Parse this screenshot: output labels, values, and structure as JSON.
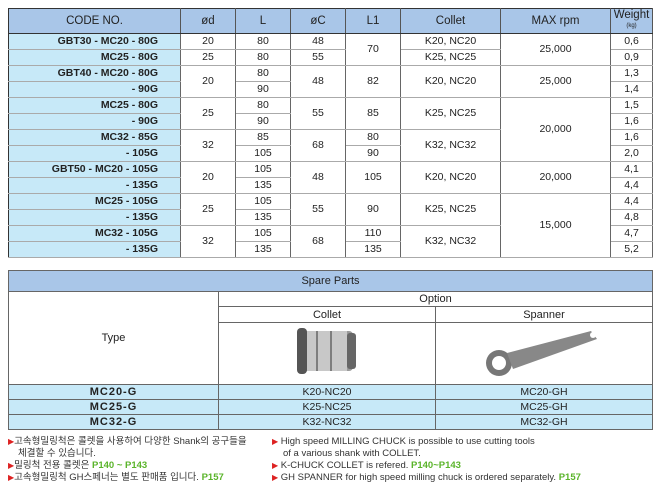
{
  "spec_table": {
    "headers": [
      "CODE NO.",
      "ød",
      "L",
      "øC",
      "L1",
      "Collet",
      "MAX rpm",
      "Weight"
    ],
    "weight_unit": "(kg)",
    "rows": [
      {
        "code": "GBT30 - MC20 -   80G",
        "d": "20",
        "L": "80",
        "C": "48",
        "L1": "70",
        "collet": "K20, NC20",
        "rpm": "25,000",
        "w": "0,6"
      },
      {
        "code": "MC25 -   80G",
        "d": "25",
        "L": "80",
        "C": "55",
        "L1": null,
        "collet": "K25, NC25",
        "rpm": null,
        "w": "0,9"
      },
      {
        "code": "GBT40 - MC20 -   80G",
        "d": "20",
        "L": "80",
        "C": "48",
        "L1": "82",
        "collet": "K20, NC20",
        "rpm": "25,000",
        "w": "1,3"
      },
      {
        "code": "-   90G",
        "d": null,
        "L": "90",
        "C": null,
        "L1": null,
        "collet": null,
        "rpm": null,
        "w": "1,4"
      },
      {
        "code": "MC25 -   80G",
        "d": "25",
        "L": "80",
        "C": "55",
        "L1": "85",
        "collet": "K25, NC25",
        "rpm": "20,000",
        "w": "1,5"
      },
      {
        "code": "-   90G",
        "d": null,
        "L": "90",
        "C": null,
        "L1": null,
        "collet": null,
        "rpm": null,
        "w": "1,6"
      },
      {
        "code": "MC32 -   85G",
        "d": "32",
        "L": "85",
        "C": "68",
        "L1": "80",
        "collet": "K32, NC32",
        "rpm": null,
        "w": "1,6"
      },
      {
        "code": "- 105G",
        "d": null,
        "L": "105",
        "C": null,
        "L1": "90",
        "collet": null,
        "rpm": null,
        "w": "2,0"
      },
      {
        "code": "GBT50 - MC20 - 105G",
        "d": "20",
        "L": "105",
        "C": "48",
        "L1": "105",
        "collet": "K20, NC20",
        "rpm": "20,000",
        "w": "4,1"
      },
      {
        "code": "- 135G",
        "d": null,
        "L": "135",
        "C": null,
        "L1": null,
        "collet": null,
        "rpm": null,
        "w": "4,4"
      },
      {
        "code": "MC25 - 105G",
        "d": "25",
        "L": "105",
        "C": "55",
        "L1": "90",
        "collet": "K25, NC25",
        "rpm": "15,000",
        "w": "4,4"
      },
      {
        "code": "- 135G",
        "d": null,
        "L": "135",
        "C": null,
        "L1": null,
        "collet": null,
        "rpm": null,
        "w": "4,8"
      },
      {
        "code": "MC32 - 105G",
        "d": "32",
        "L": "105",
        "C": "68",
        "L1": "110",
        "collet": "K32, NC32",
        "rpm": null,
        "w": "4,7"
      },
      {
        "code": "- 135G",
        "d": null,
        "L": "135",
        "C": null,
        "L1": "135",
        "collet": null,
        "rpm": null,
        "w": "5,2"
      }
    ]
  },
  "spare_parts": {
    "title": "Spare Parts",
    "option": "Option",
    "collet": "Collet",
    "spanner": "Spanner",
    "type": "Type",
    "rows": [
      [
        "MC20-G",
        "K20-NC20",
        "MC20-GH"
      ],
      [
        "MC25-G",
        "K25-NC25",
        "MC25-GH"
      ],
      [
        "MC32-G",
        "K32-NC32",
        "MC32-GH"
      ]
    ]
  },
  "notes_kr": {
    "l1": "고속형밀링척은 콜렛을 사용하여 다양한 Shank의 공구들을",
    "l1b": "체결할 수 있습니다.",
    "l2": "밀링척 전용 콜렛은 ",
    "l2p": "P140 ~ P143",
    "l3": "고속형밀링척 GH스페너는 별도 판매품 입니다.  ",
    "l3p": "P157"
  },
  "notes_en": {
    "l1": "High speed MILLING CHUCK is possible to use cutting tools",
    "l1b": "of a various shank with COLLET.",
    "l2": "K-CHUCK COLLET  is refered.   ",
    "l2p": "P140~P143",
    "l3": "GH SPANNER for high speed milling chuck is ordered separately.   ",
    "l3p": "P157"
  }
}
